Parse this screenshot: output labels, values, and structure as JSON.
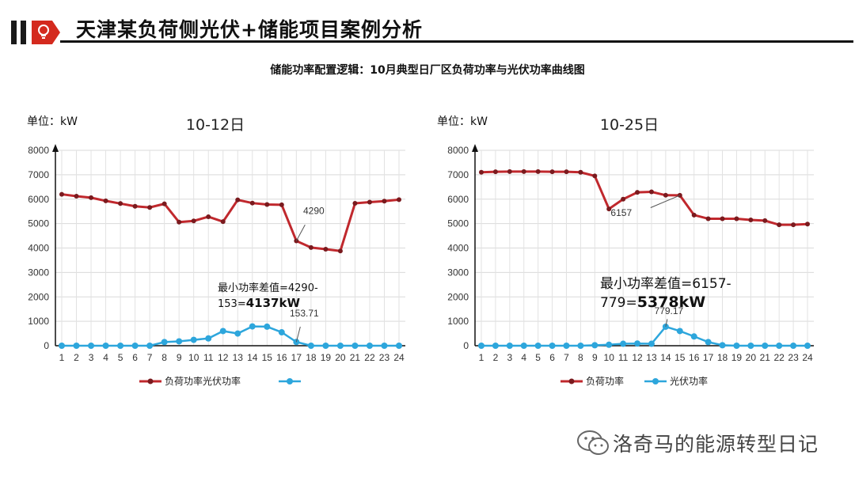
{
  "header": {
    "title": "天津某负荷侧光伏+储能项目案例分析",
    "subtitle": "储能功率配置逻辑：10月典型日厂区负荷功率与光伏功率曲线图",
    "watermark": "洛奇马的能源转型日记"
  },
  "colors": {
    "load": "#c0282d",
    "pv": "#2da6dc",
    "brand": "#d42a1e"
  },
  "chart_data": [
    {
      "type": "line",
      "title": "10-12日",
      "unit_label": "单位：kW",
      "x": [
        1,
        2,
        3,
        4,
        5,
        6,
        7,
        8,
        9,
        10,
        11,
        12,
        13,
        14,
        15,
        16,
        17,
        18,
        19,
        20,
        21,
        22,
        23,
        24
      ],
      "ylim": [
        0,
        8000
      ],
      "yticks": [
        0,
        1000,
        2000,
        3000,
        4000,
        5000,
        6000,
        7000,
        8000
      ],
      "grid": true,
      "legend_position": "bottom",
      "legend_labels": [
        "负荷功率光伏功率",
        ""
      ],
      "series": [
        {
          "key": "load",
          "values": [
            6200,
            6120,
            6060,
            5930,
            5820,
            5710,
            5660,
            5810,
            5060,
            5110,
            5280,
            5080,
            5970,
            5840,
            5780,
            5770,
            4290,
            4020,
            3950,
            3880,
            5830,
            5880,
            5920,
            5980
          ]
        },
        {
          "key": "pv",
          "values": [
            0,
            0,
            0,
            0,
            0,
            0,
            0,
            150,
            180,
            240,
            300,
            600,
            500,
            790,
            780,
            550,
            154,
            0,
            0,
            0,
            0,
            0,
            0,
            0
          ]
        }
      ],
      "annotations": [
        {
          "text": "4290",
          "x": 17,
          "y": 4290
        },
        {
          "text": "153.71",
          "x": 17,
          "y": 154
        }
      ],
      "note_line1": "最小功率差值=4290-",
      "note_line2_prefix": "153=",
      "note_line2_bold": "4137kW"
    },
    {
      "type": "line",
      "title": "10-25日",
      "unit_label": "单位：kW",
      "x": [
        1,
        2,
        3,
        4,
        5,
        6,
        7,
        8,
        9,
        10,
        11,
        12,
        13,
        14,
        15,
        16,
        17,
        18,
        19,
        20,
        21,
        22,
        23,
        24
      ],
      "ylim": [
        0,
        8000
      ],
      "yticks": [
        0,
        1000,
        2000,
        3000,
        4000,
        5000,
        6000,
        7000,
        8000
      ],
      "grid": true,
      "legend_position": "bottom",
      "legend_labels": [
        "负荷功率",
        "光伏功率"
      ],
      "series": [
        {
          "key": "load",
          "values": [
            7100,
            7120,
            7130,
            7130,
            7130,
            7120,
            7120,
            7100,
            6950,
            5600,
            6000,
            6280,
            6300,
            6160,
            6157,
            5350,
            5200,
            5200,
            5200,
            5150,
            5120,
            4950,
            4950,
            4980
          ]
        },
        {
          "key": "pv",
          "values": [
            0,
            0,
            0,
            0,
            0,
            0,
            0,
            0,
            20,
            40,
            80,
            90,
            80,
            779,
            600,
            380,
            150,
            20,
            0,
            0,
            0,
            0,
            0,
            0
          ]
        }
      ],
      "annotations": [
        {
          "text": "6157",
          "x": 15,
          "y": 6157
        },
        {
          "text": "779.17",
          "x": 14,
          "y": 779
        }
      ],
      "note_line1": "最小功率差值=6157-",
      "note_line2_prefix": "779=",
      "note_line2_bold": "5378kW"
    }
  ]
}
